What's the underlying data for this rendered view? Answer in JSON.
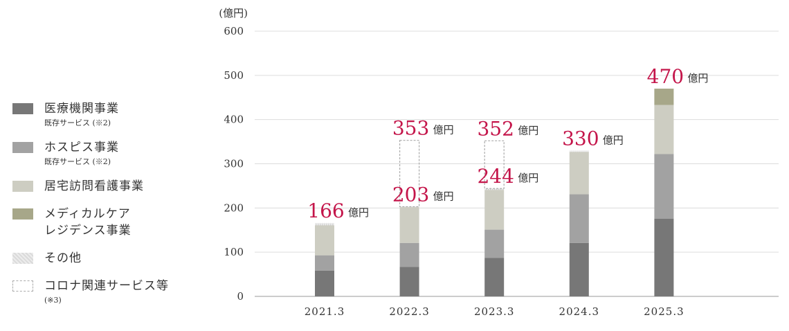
{
  "legend": [
    {
      "label": "医療機関事業",
      "note": "既存サービス (※2)",
      "color": "#777777",
      "style": "solid"
    },
    {
      "label": "ホスピス事業",
      "note": "既存サービス (※2)",
      "color": "#a2a2a2",
      "style": "solid"
    },
    {
      "label": "居宅訪問看護事業",
      "note": "",
      "color": "#cdcdc2",
      "style": "solid"
    },
    {
      "label": "メディカルケア\nレジデンス事業",
      "note": "",
      "color": "#a7a789",
      "style": "solid"
    },
    {
      "label": "その他",
      "note": "",
      "color": "#e2e2e2",
      "style": "dotted"
    },
    {
      "label": "コロナ関連サービス等",
      "note": "(※3)",
      "color": "#aaaaaa",
      "style": "dashed"
    }
  ],
  "chart_data": {
    "type": "bar",
    "stacked": true,
    "y_unit_label": "(億円)",
    "ylim": [
      0,
      600
    ],
    "y_ticks": [
      0,
      100,
      200,
      300,
      400,
      500,
      600
    ],
    "categories": [
      "2021.3",
      "2022.3",
      "2023.3",
      "2024.3",
      "2025.3"
    ],
    "series": [
      {
        "name": "医療機関事業",
        "color": "#777777",
        "style": "solid",
        "values": [
          58,
          67,
          87,
          121,
          176
        ]
      },
      {
        "name": "ホスピス事業",
        "color": "#a2a2a2",
        "style": "solid",
        "values": [
          35,
          54,
          64,
          110,
          146
        ]
      },
      {
        "name": "居宅訪問看護事業",
        "color": "#cdcdc2",
        "style": "solid",
        "values": [
          68,
          81,
          90,
          96,
          111
        ]
      },
      {
        "name": "メディカルケア\nレジデンス事業",
        "color": "#a7a789",
        "style": "solid",
        "values": [
          0,
          0,
          0,
          0,
          37
        ]
      },
      {
        "name": "その他",
        "color": "#e2e2e2",
        "style": "dotted",
        "values": [
          5,
          1,
          3,
          3,
          0
        ]
      },
      {
        "name": "コロナ関連サービス等",
        "color": "#aaaaaa",
        "style": "dashed",
        "values": [
          0,
          150,
          108,
          0,
          0
        ]
      }
    ],
    "totals_unit": "億円",
    "total_labels": [
      {
        "category": "2021.3",
        "value": "166"
      },
      {
        "category": "2022.3",
        "value": "353"
      },
      {
        "category": "2022.3",
        "value": "203"
      },
      {
        "category": "2023.3",
        "value": "352"
      },
      {
        "category": "2023.3",
        "value": "244"
      },
      {
        "category": "2024.3",
        "value": "330"
      },
      {
        "category": "2025.3",
        "value": "470"
      }
    ],
    "grid": true,
    "legend_position": "left",
    "label_color": "#c4154a"
  }
}
